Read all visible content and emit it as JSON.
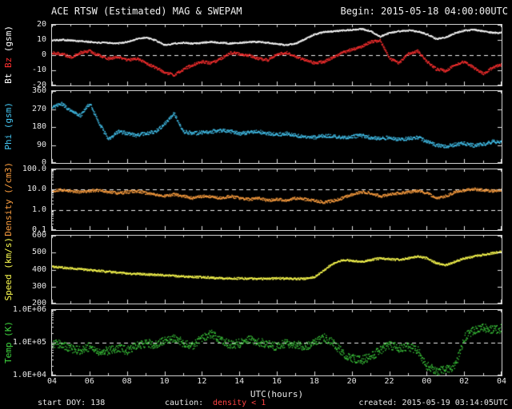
{
  "header": {
    "title": "ACE RTSW (Estimated) MAG & SWEPAM",
    "begin": "Begin: 2015-05-18 04:00:00UTC"
  },
  "footer": {
    "start_doy": "start DOY: 138",
    "caution_label": "caution:",
    "caution_value": "density < 1",
    "caution_color": "#ff4444",
    "created": "created: 2015-05-19 03:14:05UTC"
  },
  "x_axis": {
    "label": "UTC(hours)",
    "tick_labels": [
      "04",
      "06",
      "08",
      "10",
      "12",
      "14",
      "16",
      "18",
      "20",
      "22",
      "00",
      "02",
      "04"
    ]
  },
  "colors": {
    "background": "#000000",
    "frame": "#d0d0d0",
    "bt": "#ffffff",
    "bz": "#ff3030",
    "phi": "#45c8f5",
    "density": "#ffa040",
    "speed": "#ffff50",
    "temp": "#3ed43e"
  },
  "chart_data": {
    "type": "scatter",
    "title": "ACE RTSW (Estimated) MAG & SWEPAM",
    "xlabel": "UTC(hours)",
    "xlim": [
      4,
      28
    ],
    "x_hours": [
      4,
      4.5,
      5,
      5.5,
      6,
      6.5,
      7,
      7.5,
      8,
      8.5,
      9,
      9.5,
      10,
      10.5,
      11,
      11.5,
      12,
      12.5,
      13,
      13.5,
      14,
      14.5,
      15,
      15.5,
      16,
      16.5,
      17,
      17.5,
      18,
      18.5,
      19,
      19.5,
      20,
      20.5,
      21,
      21.5,
      22,
      22.5,
      23,
      23.5,
      24,
      24.5,
      25,
      25.5,
      26,
      26.5,
      27,
      27.5,
      28
    ],
    "panels": [
      {
        "id": "bt-bz",
        "yscale": "linear",
        "ylim": [
          -20,
          20
        ],
        "yticks": [
          20,
          10,
          0,
          -10,
          -20
        ],
        "ytick_labels": [
          "20",
          "10",
          "0",
          "-10",
          "-20"
        ],
        "dashed_lines": [
          0
        ],
        "ylabel_parts": [
          {
            "text": "Bt ",
            "color": "#ffffff"
          },
          {
            "text": "Bz ",
            "color": "#ff3030"
          },
          {
            "text": "(gsm)",
            "color": "#ffffff"
          }
        ],
        "series": [
          {
            "name": "Bt",
            "color": "#ffffff",
            "jitter": 0.5,
            "values": [
              10,
              10.5,
              10,
              9.5,
              9,
              8.5,
              8.5,
              8,
              9,
              11,
              12,
              10,
              7,
              8,
              8.5,
              8,
              8.5,
              9,
              8.5,
              8,
              8.5,
              9,
              9,
              8.5,
              7.5,
              7,
              8,
              11,
              14,
              15.5,
              16,
              16.5,
              17,
              17.5,
              16,
              12.5,
              15,
              16,
              16.5,
              16,
              14,
              11,
              12,
              15,
              16.5,
              17,
              16,
              15,
              15
            ]
          },
          {
            "name": "Bz",
            "color": "#ff3030",
            "jitter": 0.9,
            "values": [
              2,
              1,
              -1,
              2,
              3,
              0,
              -2,
              -1,
              -3,
              -2,
              -5,
              -8,
              -11,
              -13,
              -9,
              -6,
              -4,
              -5,
              -2,
              2,
              1,
              0,
              -2,
              -3,
              1,
              2,
              -1,
              -3,
              -5,
              -4,
              -1,
              2,
              4,
              6,
              9,
              10,
              -2,
              -5,
              1,
              3,
              -4,
              -9,
              -10,
              -6,
              -4,
              -8,
              -12,
              -8,
              -6
            ]
          }
        ]
      },
      {
        "id": "phi",
        "yscale": "linear",
        "ylim": [
          0,
          360
        ],
        "yticks": [
          360,
          270,
          180,
          90,
          0
        ],
        "ytick_labels": [
          "360",
          "270",
          "180",
          "90",
          "0"
        ],
        "dashed_lines": [],
        "ylabel_parts": [
          {
            "text": "Phi (gsm)",
            "color": "#45c8f5"
          }
        ],
        "series": [
          {
            "name": "Phi",
            "color": "#45c8f5",
            "jitter": 9,
            "values": [
              280,
              300,
              260,
              240,
              300,
              200,
              120,
              160,
              150,
              140,
              150,
              160,
              200,
              250,
              160,
              150,
              155,
              160,
              165,
              160,
              150,
              155,
              160,
              150,
              145,
              150,
              140,
              135,
              130,
              140,
              135,
              130,
              135,
              140,
              130,
              125,
              130,
              120,
              125,
              130,
              110,
              90,
              85,
              95,
              100,
              90,
              95,
              110,
              105
            ]
          }
        ]
      },
      {
        "id": "density",
        "yscale": "log",
        "ylim": [
          0.1,
          100
        ],
        "yticks": [
          100,
          10,
          1,
          0.1
        ],
        "ytick_labels": [
          "100.0",
          "10.0",
          "1.0",
          "0.1"
        ],
        "dashed_lines": [
          10,
          1
        ],
        "ylabel_parts": [
          {
            "text": "Density (/cm3)",
            "color": "#ffa040"
          }
        ],
        "series": [
          {
            "name": "Density",
            "color": "#ffa040",
            "jitter": 0.07,
            "values": [
              9,
              10,
              9,
              8,
              9,
              10,
              8,
              7,
              8,
              9,
              7,
              6,
              5,
              6,
              5,
              4,
              5,
              4.5,
              4,
              5,
              4,
              3.5,
              4,
              3,
              3.5,
              3,
              4,
              3.5,
              3,
              2.5,
              3,
              4,
              6,
              8,
              7,
              5,
              6,
              7,
              8,
              9,
              7,
              4,
              5,
              8,
              10,
              11,
              10,
              9,
              10
            ]
          }
        ]
      },
      {
        "id": "speed",
        "yscale": "linear",
        "ylim": [
          200,
          600
        ],
        "yticks": [
          600,
          500,
          400,
          300,
          200
        ],
        "ytick_labels": [
          "600",
          "500",
          "400",
          "300",
          "200"
        ],
        "dashed_lines": [],
        "ylabel_parts": [
          {
            "text": "Speed (km/s)",
            "color": "#ffff50"
          }
        ],
        "series": [
          {
            "name": "Speed",
            "color": "#ffff50",
            "jitter": 6,
            "values": [
              420,
              415,
              410,
              405,
              400,
              395,
              390,
              385,
              380,
              378,
              375,
              372,
              370,
              365,
              362,
              360,
              358,
              355,
              352,
              350,
              352,
              350,
              348,
              350,
              352,
              350,
              348,
              350,
              360,
              400,
              440,
              460,
              455,
              450,
              460,
              470,
              465,
              460,
              470,
              480,
              470,
              440,
              430,
              450,
              470,
              480,
              490,
              500,
              510
            ]
          }
        ]
      },
      {
        "id": "temp",
        "yscale": "log",
        "ylim": [
          10000,
          1000000
        ],
        "yticks": [
          1000000,
          100000,
          10000
        ],
        "ytick_labels": [
          "1.0E+06",
          "1.0E+05",
          "1.0E+04"
        ],
        "dashed_lines": [
          100000
        ],
        "ylabel_parts": [
          {
            "text": "Temp (K)",
            "color": "#3ed43e"
          }
        ],
        "series": [
          {
            "name": "Temp",
            "color": "#3ed43e",
            "jitter": 0.13,
            "values": [
              100000,
              90000,
              70000,
              60000,
              80000,
              50000,
              60000,
              70000,
              60000,
              80000,
              100000,
              90000,
              120000,
              150000,
              100000,
              80000,
              150000,
              200000,
              120000,
              90000,
              100000,
              130000,
              110000,
              90000,
              80000,
              100000,
              90000,
              80000,
              100000,
              150000,
              100000,
              50000,
              35000,
              30000,
              40000,
              60000,
              90000,
              70000,
              80000,
              60000,
              20000,
              14000,
              15000,
              20000,
              150000,
              250000,
              300000,
              250000,
              280000
            ]
          }
        ]
      }
    ]
  }
}
